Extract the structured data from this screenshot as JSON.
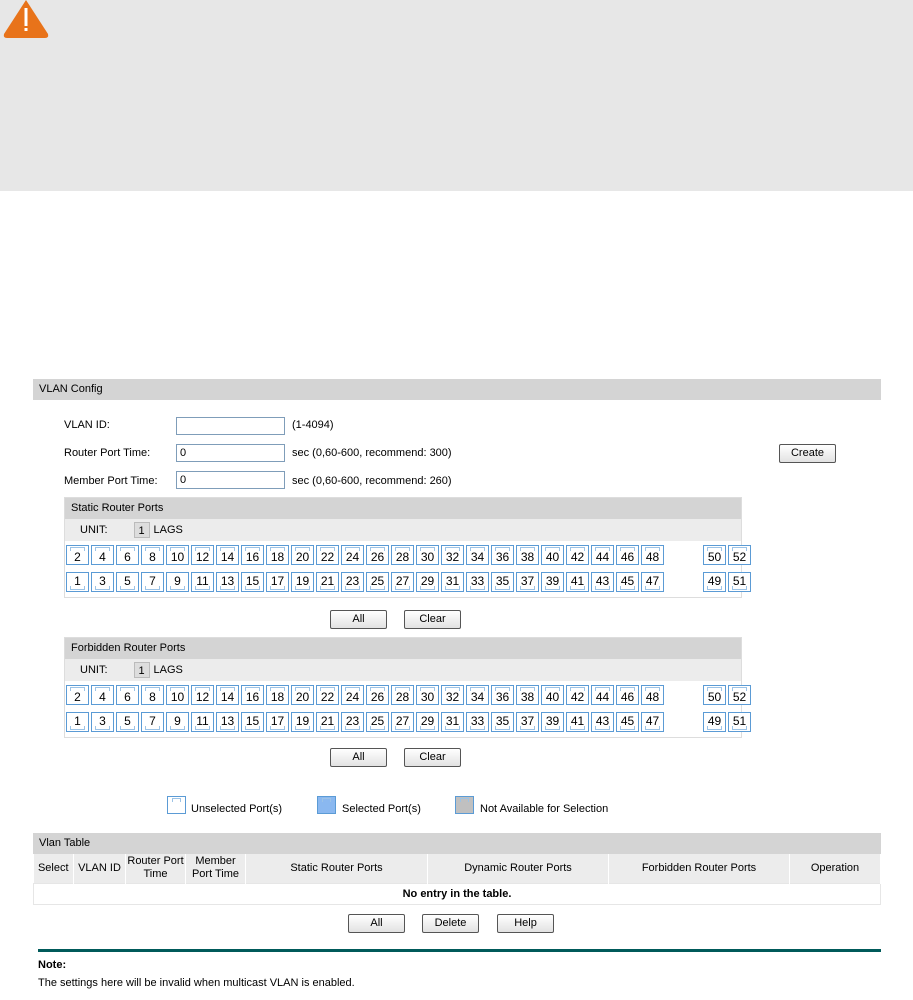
{
  "warning": {
    "icon": "warning-icon",
    "color": "#e8731a"
  },
  "vlan_config": {
    "title": "VLAN Config",
    "vlan_id_label": "VLAN ID:",
    "vlan_id_value": "",
    "vlan_id_hint": "(1-4094)",
    "router_time_label": "Router Port Time:",
    "router_time_value": "0",
    "router_time_hint": "sec (0,60-600, recommend: 300)",
    "member_time_label": "Member Port Time:",
    "member_time_value": "0",
    "member_time_hint": "sec (0,60-600, recommend: 260)",
    "create_label": "Create"
  },
  "static_ports": {
    "title": "Static Router Ports",
    "unit_label": "UNIT:",
    "unit_value": "1",
    "lags_label": "LAGS",
    "all_label": "All",
    "clear_label": "Clear"
  },
  "forbidden_ports": {
    "title": "Forbidden Router Ports",
    "unit_label": "UNIT:",
    "unit_value": "1",
    "lags_label": "LAGS",
    "all_label": "All",
    "clear_label": "Clear"
  },
  "ports": {
    "top": [
      "2",
      "4",
      "6",
      "8",
      "10",
      "12",
      "14",
      "16",
      "18",
      "20",
      "22",
      "24",
      "26",
      "28",
      "30",
      "32",
      "34",
      "36",
      "38",
      "40",
      "42",
      "44",
      "46",
      "48",
      "50",
      "52"
    ],
    "bottom": [
      "1",
      "3",
      "5",
      "7",
      "9",
      "11",
      "13",
      "15",
      "17",
      "19",
      "21",
      "23",
      "25",
      "27",
      "29",
      "31",
      "33",
      "35",
      "37",
      "39",
      "41",
      "43",
      "45",
      "47",
      "49",
      "51"
    ]
  },
  "legend": {
    "unselected": "Unselected Port(s)",
    "selected": "Selected Port(s)",
    "na": "Not Available for Selection",
    "colors": {
      "unselected": "#ffffff",
      "selected": "#8ab8f0",
      "na": "#c0c0c0"
    }
  },
  "vlan_table": {
    "title": "Vlan Table",
    "columns": [
      "Select",
      "VLAN ID",
      "Router Port Time",
      "Member Port Time",
      "Static Router Ports",
      "Dynamic Router Ports",
      "Forbidden Router Ports",
      "Operation"
    ],
    "empty": "No entry in the table.",
    "all_label": "All",
    "delete_label": "Delete",
    "help_label": "Help"
  },
  "note": {
    "title": "Note:",
    "text": "The settings here will be invalid when multicast VLAN is enabled."
  }
}
